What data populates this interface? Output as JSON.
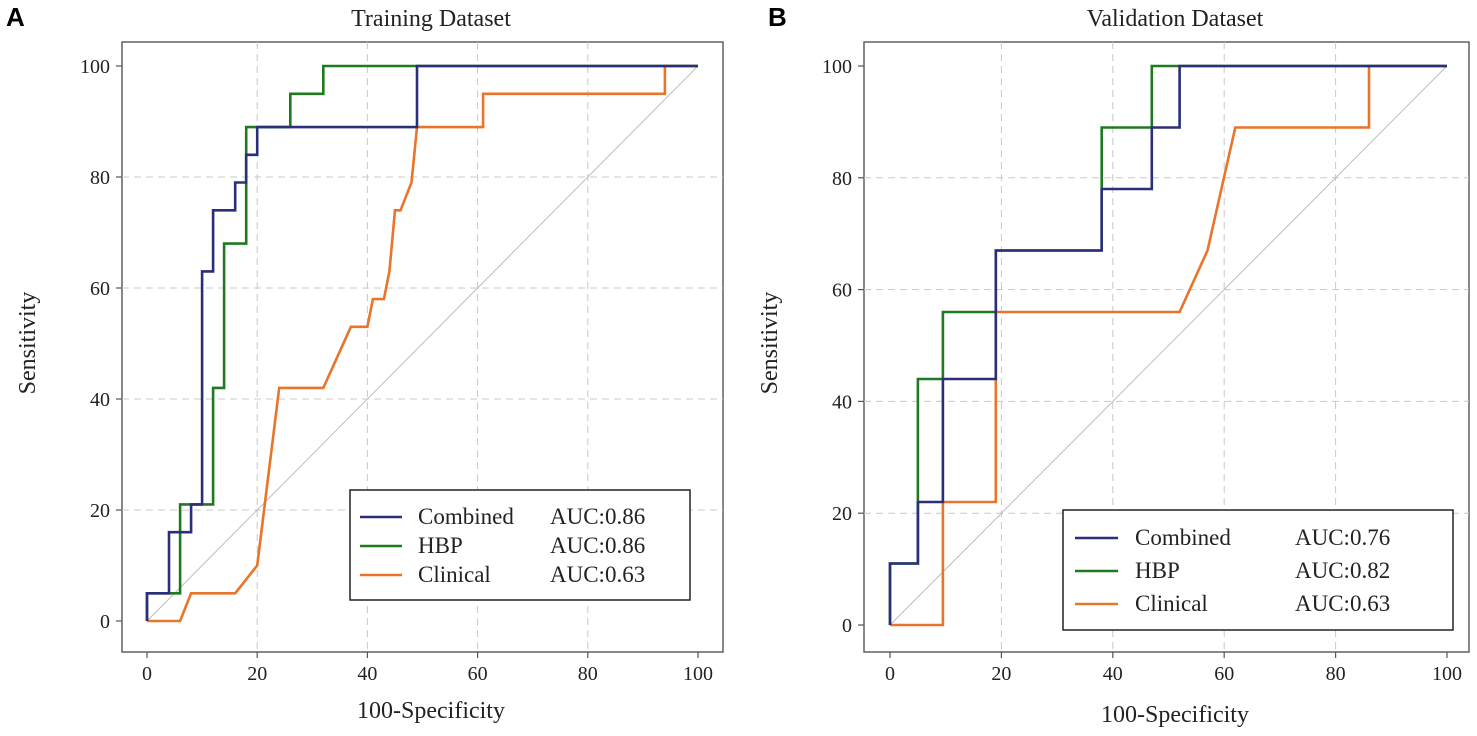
{
  "chart_data": [
    {
      "panel_letter": "A",
      "type": "line",
      "title": "Training Dataset",
      "xlabel": "100-Specificity",
      "ylabel": "Sensitivity",
      "xlim": [
        0,
        100
      ],
      "ylim": [
        0,
        100
      ],
      "xticks": [
        "0",
        "20",
        "40",
        "60",
        "80",
        "100"
      ],
      "yticks": [
        "0",
        "20",
        "40",
        "60",
        "80",
        "100"
      ],
      "grid": true,
      "legend_position": "bottom-right",
      "series": [
        {
          "name": "Combined",
          "auc_label": "AUC:0.86",
          "color": "#2b2f7a",
          "x": [
            0,
            0,
            4,
            4,
            8,
            8,
            10,
            10,
            12,
            12,
            16,
            16,
            18,
            18,
            20,
            20,
            49,
            49,
            100
          ],
          "y": [
            0,
            5,
            5,
            16,
            16,
            21,
            21,
            63,
            63,
            74,
            74,
            79,
            79,
            84,
            84,
            89,
            89,
            100,
            100
          ]
        },
        {
          "name": "HBP",
          "auc_label": "AUC:0.86",
          "color": "#1f7a1f",
          "x": [
            0,
            0,
            6,
            6,
            12,
            12,
            14,
            14,
            18,
            18,
            26,
            26,
            32,
            32,
            100
          ],
          "y": [
            0,
            5,
            5,
            21,
            21,
            42,
            42,
            68,
            68,
            89,
            89,
            95,
            95,
            100,
            100
          ]
        },
        {
          "name": "Clinical",
          "auc_label": "AUC:0.63",
          "color": "#e8752a",
          "x": [
            0,
            6,
            8,
            16,
            20,
            22,
            24,
            32,
            37,
            40,
            41,
            43,
            44,
            45,
            46,
            48,
            49,
            61,
            61,
            94,
            94,
            100
          ],
          "y": [
            0,
            0,
            5,
            5,
            10,
            26,
            42,
            42,
            53,
            53,
            58,
            58,
            63,
            74,
            74,
            79,
            89,
            89,
            95,
            95,
            100,
            100
          ]
        }
      ]
    },
    {
      "panel_letter": "B",
      "type": "line",
      "title": "Validation Dataset",
      "xlabel": "100-Specificity",
      "ylabel": "Sensitivity",
      "xlim": [
        0,
        100
      ],
      "ylim": [
        0,
        100
      ],
      "xticks": [
        "0",
        "20",
        "40",
        "60",
        "80",
        "100"
      ],
      "yticks": [
        "0",
        "20",
        "40",
        "60",
        "80",
        "100"
      ],
      "grid": true,
      "legend_position": "bottom-right",
      "series": [
        {
          "name": "Combined",
          "auc_label": "AUC:0.76",
          "color": "#2b2f7a",
          "x": [
            0,
            0,
            5,
            5,
            9.5,
            9.5,
            19,
            19,
            38,
            38,
            47,
            47,
            52,
            52,
            100
          ],
          "y": [
            0,
            11,
            11,
            22,
            22,
            44,
            44,
            67,
            67,
            78,
            78,
            89,
            89,
            100,
            100
          ]
        },
        {
          "name": "HBP",
          "auc_label": "AUC:0.82",
          "color": "#1f7a1f",
          "x": [
            0,
            0,
            5,
            5,
            9.5,
            9.5,
            19,
            19,
            38,
            38,
            47,
            47,
            100
          ],
          "y": [
            0,
            11,
            11,
            44,
            44,
            56,
            56,
            67,
            67,
            89,
            89,
            100,
            100
          ]
        },
        {
          "name": "Clinical",
          "auc_label": "AUC:0.63",
          "color": "#e8752a",
          "x": [
            0,
            9.5,
            9.5,
            19,
            19,
            52,
            57,
            62,
            86,
            86,
            100
          ],
          "y": [
            0,
            0,
            22,
            22,
            56,
            56,
            67,
            89,
            89,
            100,
            100
          ]
        }
      ]
    }
  ]
}
